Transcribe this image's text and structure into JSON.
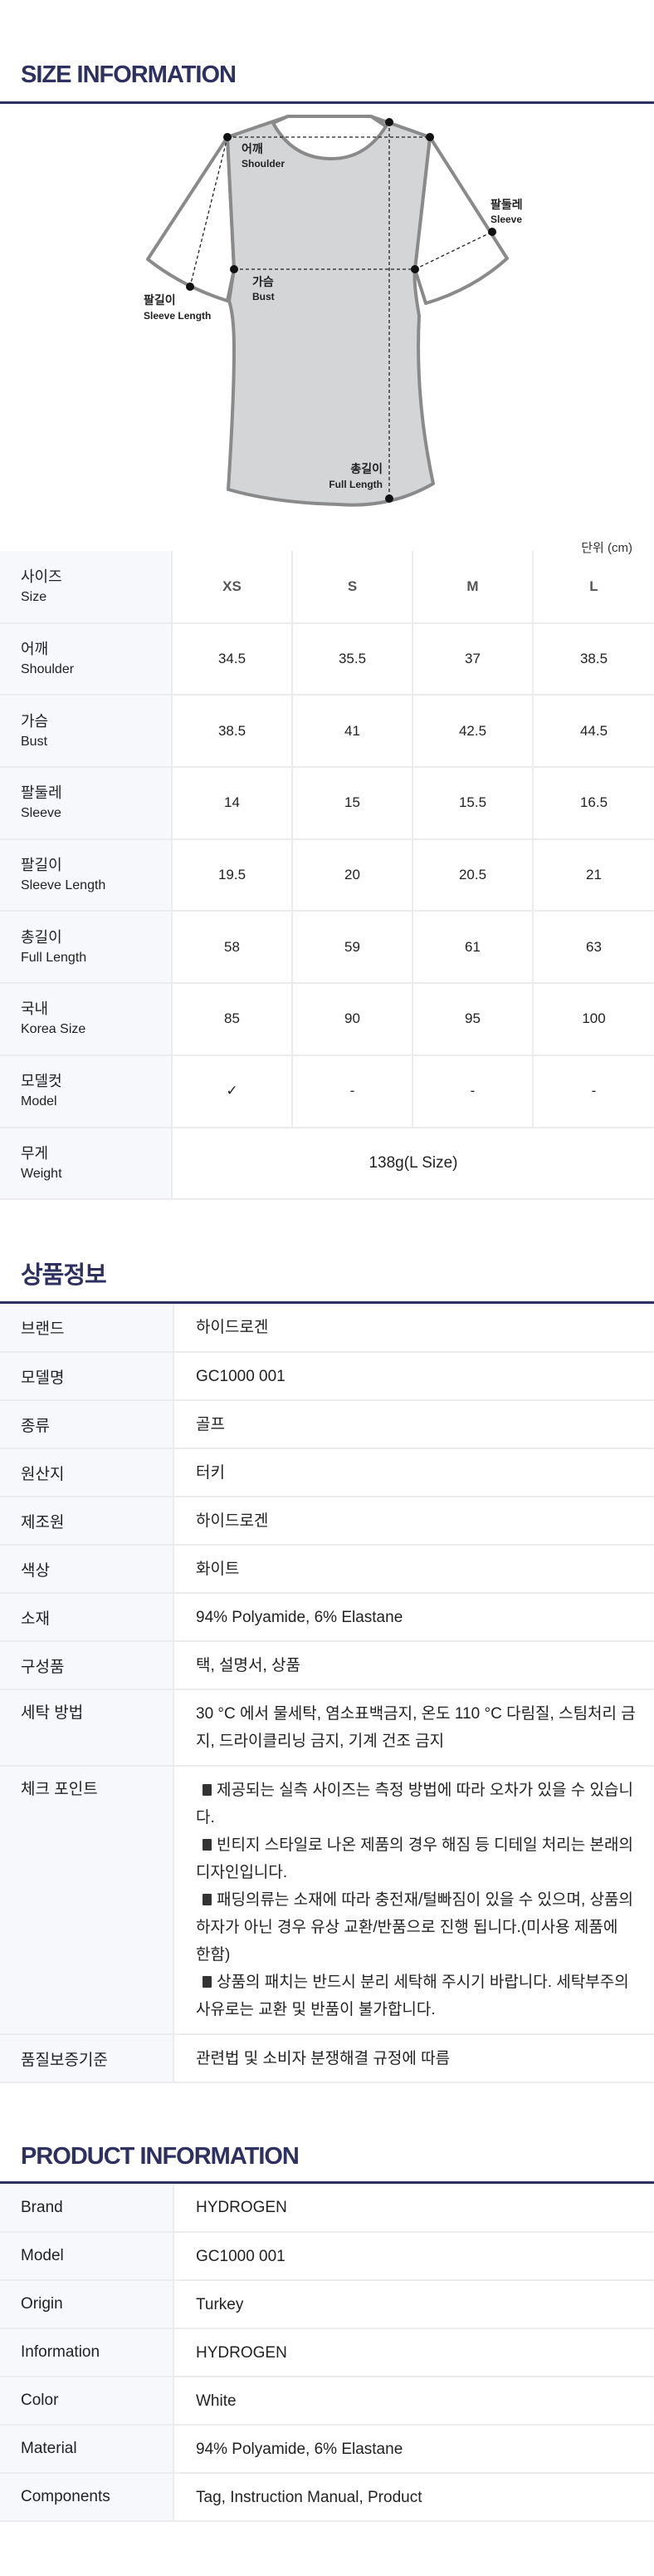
{
  "size_info": {
    "title": "SIZE INFORMATION",
    "diagram_labels": {
      "shoulder": {
        "ko": "어깨",
        "en": "Shoulder"
      },
      "sleeve": {
        "ko": "팔둘레",
        "en": "Sleeve"
      },
      "bust": {
        "ko": "가슴",
        "en": "Bust"
      },
      "sleeve_length": {
        "ko": "팔길이",
        "en": "Sleeve Length"
      },
      "full_length": {
        "ko": "총길이",
        "en": "Full Length"
      }
    },
    "unit": "단위 (cm)",
    "header": {
      "ko": "사이즈",
      "en": "Size",
      "sizes": [
        "XS",
        "S",
        "M",
        "L"
      ]
    },
    "rows": [
      {
        "ko": "어깨",
        "en": "Shoulder",
        "values": [
          "34.5",
          "35.5",
          "37",
          "38.5"
        ]
      },
      {
        "ko": "가슴",
        "en": "Bust",
        "values": [
          "38.5",
          "41",
          "42.5",
          "44.5"
        ]
      },
      {
        "ko": "팔둘레",
        "en": "Sleeve",
        "values": [
          "14",
          "15",
          "15.5",
          "16.5"
        ]
      },
      {
        "ko": "팔길이",
        "en": "Sleeve Length",
        "values": [
          "19.5",
          "20",
          "20.5",
          "21"
        ]
      },
      {
        "ko": "총길이",
        "en": "Full Length",
        "values": [
          "58",
          "59",
          "61",
          "63"
        ]
      },
      {
        "ko": "국내",
        "en": "Korea Size",
        "values": [
          "85",
          "90",
          "95",
          "100"
        ]
      },
      {
        "ko": "모델컷",
        "en": "Model",
        "values": [
          "✓",
          "-",
          "-",
          "-"
        ]
      }
    ],
    "weight": {
      "ko": "무게",
      "en": "Weight",
      "value": "138g(L Size)"
    }
  },
  "product_info_ko": {
    "title": "상품정보",
    "rows": [
      {
        "label": "브랜드",
        "value": "하이드로겐"
      },
      {
        "label": "모델명",
        "value": "GC1000 001"
      },
      {
        "label": "종류",
        "value": "골프"
      },
      {
        "label": "원산지",
        "value": "터키"
      },
      {
        "label": "제조원",
        "value": "하이드로겐"
      },
      {
        "label": "색상",
        "value": "화이트"
      },
      {
        "label": "소재",
        "value": "94% Polyamide, 6% Elastane"
      },
      {
        "label": "구성품",
        "value": "택, 설명서, 상품"
      },
      {
        "label": "세탁 방법",
        "value": "30 °C 에서 물세탁, 염소표백금지, 온도 110 °C 다림질, 스팀처리 금지, 드라이클리닝 금지, 기계 건조 금지"
      }
    ],
    "check_point": {
      "label": "체크 포인트",
      "items": [
        "제공되는 실측 사이즈는 측정 방법에 따라 오차가 있을 수 있습니다.",
        "빈티지 스타일로 나온 제품의 경우 해짐 등 디테일 처리는 본래의 디자인입니다.",
        "패딩의류는 소재에 따라 충전재/털빠짐이 있을 수 있으며, 상품의 하자가 아닌 경우 유상 교환/반품으로 진행 됩니다.(미사용 제품에 한함)",
        "상품의 패치는 반드시 분리 세탁해 주시기 바랍니다. 세탁부주의 사유로는 교환 및 반품이 불가합니다."
      ]
    },
    "quality": {
      "label": "품질보증기준",
      "value": "관련법 및 소비자 분쟁해결 규정에 따름"
    }
  },
  "product_info_en": {
    "title": "PRODUCT INFORMATION",
    "rows": [
      {
        "label": "Brand",
        "value": "HYDROGEN"
      },
      {
        "label": "Model",
        "value": "GC1000 001"
      },
      {
        "label": "Origin",
        "value": "Turkey"
      },
      {
        "label": "Information",
        "value": "HYDROGEN"
      },
      {
        "label": "Color",
        "value": "White"
      },
      {
        "label": "Material",
        "value": "94% Polyamide, 6% Elastane"
      },
      {
        "label": "Components",
        "value": "Tag, Instruction Manual, Product"
      }
    ]
  },
  "colors": {
    "accent": "#2e3160",
    "label_bg": "#f7f8fc",
    "shirt_body": "#d4d5d7",
    "shirt_outline": "#8a8a8a"
  }
}
